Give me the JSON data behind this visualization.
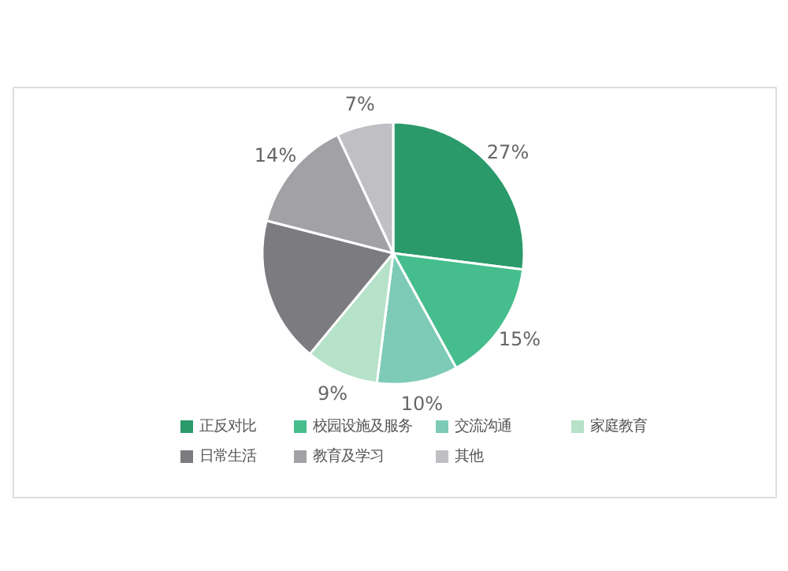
{
  "chart_data": {
    "type": "pie",
    "categories": [
      "正反对比",
      "校园设施及服务",
      "交流沟通",
      "家庭教育",
      "日常生活",
      "教育及学习",
      "其他"
    ],
    "values": [
      27,
      15,
      10,
      9,
      18,
      14,
      7
    ],
    "colors": [
      "#2a9a6a",
      "#45bd8c",
      "#7dcbb6",
      "#b5e2c8",
      "#7c7c80",
      "#a2a2a6",
      "#c0c0c4"
    ],
    "value_labels": [
      "27%",
      "15%",
      "10%",
      "9%",
      null,
      "14%",
      "7%"
    ],
    "legend": "bottom"
  }
}
